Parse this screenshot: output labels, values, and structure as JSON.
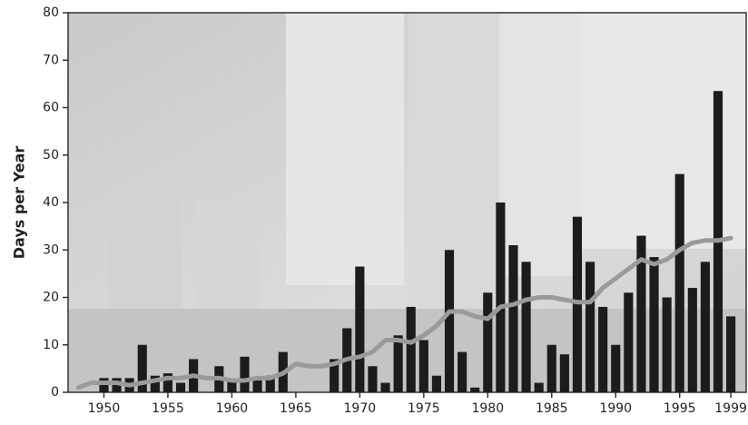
{
  "chart_data": {
    "type": "bar+line",
    "y_label": "Days per Year",
    "x": [
      1948,
      1949,
      1950,
      1951,
      1952,
      1953,
      1954,
      1955,
      1956,
      1957,
      1958,
      1959,
      1960,
      1961,
      1962,
      1963,
      1964,
      1965,
      1966,
      1967,
      1968,
      1969,
      1970,
      1971,
      1972,
      1973,
      1974,
      1975,
      1976,
      1977,
      1978,
      1979,
      1980,
      1981,
      1982,
      1983,
      1984,
      1985,
      1986,
      1987,
      1988,
      1989,
      1990,
      1991,
      1992,
      1993,
      1994,
      1995,
      1996,
      1997,
      1998,
      1999
    ],
    "series": [
      {
        "type": "bar",
        "color": "#1c1c1c",
        "values": [
          0,
          0,
          3,
          3,
          3,
          10,
          3.5,
          4,
          2,
          7,
          0,
          5.5,
          2.5,
          7.5,
          2.5,
          3.5,
          8.5,
          0,
          0,
          0,
          7,
          13.5,
          26.5,
          5.5,
          2,
          12,
          18,
          11,
          3.5,
          30,
          8.5,
          1,
          21,
          40,
          31,
          27.5,
          2,
          10,
          8,
          37,
          27.5,
          18,
          10,
          21,
          33,
          28.5,
          20,
          46,
          22,
          27.5,
          63.5,
          16
        ]
      },
      {
        "type": "line",
        "color": "#9a9a9a",
        "values": [
          1,
          2,
          2,
          2,
          1.5,
          2,
          2.5,
          3,
          3,
          3.5,
          3,
          3,
          2.5,
          2.5,
          3,
          3,
          4,
          6,
          5.5,
          5.5,
          6,
          7,
          7.5,
          8.5,
          11,
          11,
          10.5,
          12,
          14,
          17,
          17,
          16,
          15.5,
          18,
          18.5,
          19.5,
          20,
          20,
          19.5,
          19,
          19,
          22,
          24,
          26,
          28,
          27,
          28,
          30,
          31.5,
          32,
          32,
          32.5
        ]
      }
    ],
    "xlim": [
      1947.2,
      2000.2
    ],
    "xticks": [
      1950,
      1955,
      1960,
      1965,
      1970,
      1975,
      1980,
      1985,
      1990,
      1995,
      1999
    ],
    "ylim": [
      0,
      80
    ],
    "yticks": [
      0,
      10,
      20,
      30,
      40,
      50,
      60,
      70,
      80
    ]
  }
}
